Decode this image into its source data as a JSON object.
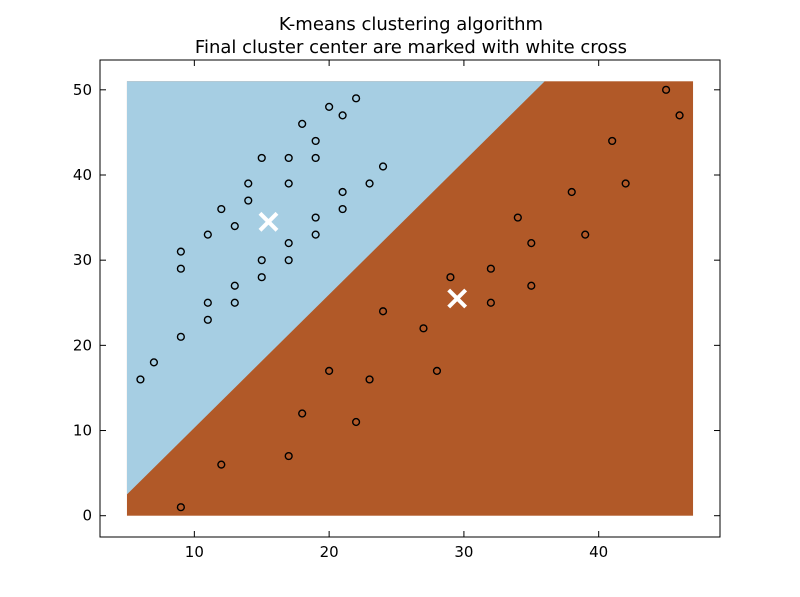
{
  "chart_data": {
    "type": "scatter",
    "title": "K-means clustering algorithm",
    "subtitle": "Final cluster center are marked with white cross",
    "xlabel": "",
    "ylabel": "",
    "xlim": [
      3,
      49
    ],
    "ylim": [
      -2.5,
      53.5
    ],
    "xticks": [
      10,
      20,
      30,
      40
    ],
    "yticks": [
      0,
      10,
      20,
      30,
      40,
      50
    ],
    "grid": false,
    "legend": "none",
    "regions": {
      "domain_x": [
        5,
        47
      ],
      "domain_y": [
        0,
        51
      ],
      "boundary": [
        [
          5,
          2.5
        ],
        [
          36,
          51
        ]
      ],
      "upper_color": "#a6cee3",
      "lower_color": "#b15928"
    },
    "points": [
      [
        6,
        16
      ],
      [
        7,
        18
      ],
      [
        9,
        1
      ],
      [
        9,
        21
      ],
      [
        9,
        29
      ],
      [
        9,
        31
      ],
      [
        11,
        23
      ],
      [
        11,
        25
      ],
      [
        11,
        33
      ],
      [
        12,
        6
      ],
      [
        12,
        36
      ],
      [
        13,
        25
      ],
      [
        13,
        27
      ],
      [
        13,
        34
      ],
      [
        14,
        37
      ],
      [
        14,
        39
      ],
      [
        15,
        28
      ],
      [
        15,
        30
      ],
      [
        15,
        42
      ],
      [
        17,
        7
      ],
      [
        17,
        30
      ],
      [
        17,
        32
      ],
      [
        17,
        39
      ],
      [
        17,
        42
      ],
      [
        18,
        12
      ],
      [
        18,
        46
      ],
      [
        19,
        33
      ],
      [
        19,
        35
      ],
      [
        19,
        42
      ],
      [
        19,
        44
      ],
      [
        20,
        17
      ],
      [
        20,
        48
      ],
      [
        21,
        36
      ],
      [
        21,
        38
      ],
      [
        21,
        47
      ],
      [
        22,
        11
      ],
      [
        22,
        49
      ],
      [
        23,
        16
      ],
      [
        23,
        39
      ],
      [
        24,
        24
      ],
      [
        24,
        41
      ],
      [
        27,
        22
      ],
      [
        28,
        17
      ],
      [
        29,
        28
      ],
      [
        32,
        25
      ],
      [
        32,
        29
      ],
      [
        34,
        35
      ],
      [
        35,
        27
      ],
      [
        35,
        32
      ],
      [
        38,
        38
      ],
      [
        39,
        33
      ],
      [
        41,
        44
      ],
      [
        42,
        39
      ],
      [
        45,
        50
      ],
      [
        46,
        47
      ]
    ],
    "centers": [
      [
        15.5,
        34.5
      ],
      [
        29.5,
        25.5
      ]
    ],
    "center_color": "#ffffff",
    "point_edge_color": "#000000"
  }
}
